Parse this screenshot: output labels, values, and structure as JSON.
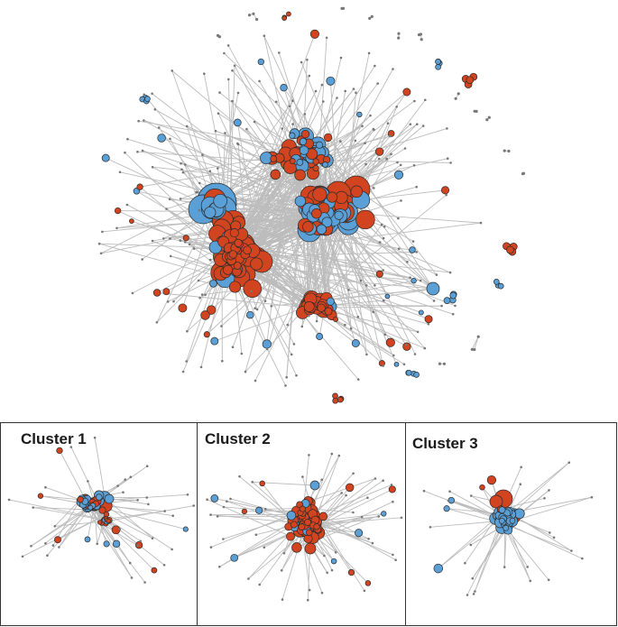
{
  "colors": {
    "blue": "#5a9fd6",
    "red": "#d1441f",
    "edge": "#bcbcbc",
    "node_stroke": "#2b2b2b",
    "small_node": "#777777",
    "frame": "#333333"
  },
  "clusters": [
    {
      "title": "Cluster 1"
    },
    {
      "title": "Cluster 2"
    },
    {
      "title": "Cluster 3"
    }
  ]
}
